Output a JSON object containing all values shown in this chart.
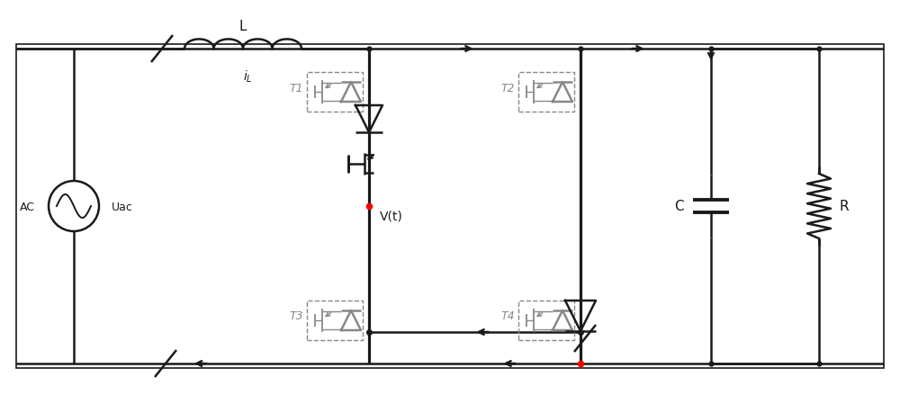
{
  "bg_color": "#ffffff",
  "line_color": "#1a1a1a",
  "dashed_color": "#888888",
  "figsize": [
    10.0,
    4.6
  ],
  "dpi": 100,
  "xlim": [
    0,
    10
  ],
  "ylim": [
    0,
    4.6
  ]
}
